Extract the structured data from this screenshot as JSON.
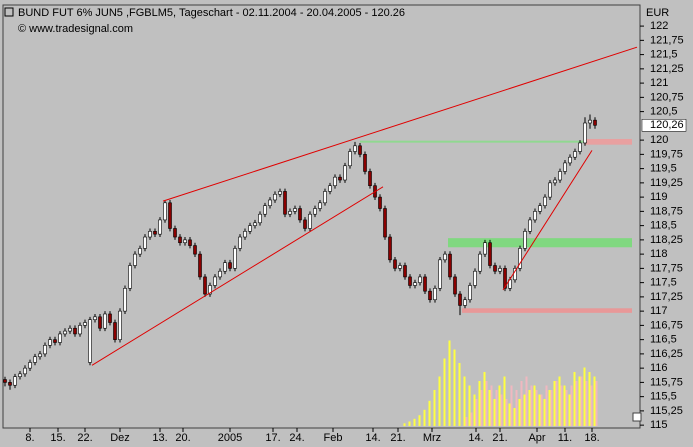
{
  "chart_data": {
    "type": "candlestick",
    "title": "BUND FUT 6% JUN5 ,FGBLM5, Tageschart - 02.11.2004 - 20.04.2005 - 120.26",
    "subtitle": "© www.tradesignal.com",
    "y_unit": "EUR",
    "xlim": [
      -0.4,
      127
    ],
    "ylim": [
      114.95,
      122.37
    ],
    "xticks": [
      {
        "value": 5,
        "label": "8."
      },
      {
        "value": 10.6,
        "label": "15."
      },
      {
        "value": 16,
        "label": "22."
      },
      {
        "value": 23,
        "label": "Dez"
      },
      {
        "value": 31,
        "label": "13."
      },
      {
        "value": 35.6,
        "label": "20."
      },
      {
        "value": 45,
        "label": "2005"
      },
      {
        "value": 53.6,
        "label": "17."
      },
      {
        "value": 58.4,
        "label": "24."
      },
      {
        "value": 65.6,
        "label": "Feb"
      },
      {
        "value": 73.6,
        "label": "14."
      },
      {
        "value": 78.6,
        "label": "21."
      },
      {
        "value": 85.4,
        "label": "Mrz"
      },
      {
        "value": 94.2,
        "label": "14."
      },
      {
        "value": 99,
        "label": "21."
      },
      {
        "value": 106.4,
        "label": "Apr"
      },
      {
        "value": 112,
        "label": "11."
      },
      {
        "value": 117.4,
        "label": "18."
      }
    ],
    "yticks": [
      115,
      {
        "value": 115.25,
        "label": "115,25"
      },
      {
        "value": 115.5,
        "label": "115,5"
      },
      {
        "value": 115.75,
        "label": "115,75"
      },
      116,
      {
        "value": 116.25,
        "label": "116,25"
      },
      {
        "value": 116.5,
        "label": "116,5"
      },
      {
        "value": 116.75,
        "label": "116,75"
      },
      117,
      {
        "value": 117.25,
        "label": "117,25"
      },
      {
        "value": 117.5,
        "label": "117,5"
      },
      {
        "value": 117.75,
        "label": "117,75"
      },
      118,
      {
        "value": 118.25,
        "label": "118,25"
      },
      {
        "value": 118.5,
        "label": "118,5"
      },
      {
        "value": 118.75,
        "label": "118,75"
      },
      119,
      {
        "value": 119.25,
        "label": "119,25"
      },
      {
        "value": 119.5,
        "label": "119,5"
      },
      {
        "value": 119.75,
        "label": "119,75"
      },
      120,
      {
        "value": 120.5,
        "label": "120,5"
      },
      {
        "value": 120.75,
        "label": "120,75"
      },
      121,
      {
        "value": 121.25,
        "label": "121,25"
      },
      {
        "value": 121.5,
        "label": "121,5"
      },
      {
        "value": 121.75,
        "label": "121,75"
      },
      122
    ],
    "last_price": {
      "value": 120.26,
      "label": "120,26"
    },
    "up_color": "#ffffff",
    "down_color": "#8b0000",
    "candles": [
      [
        115.8,
        115.85,
        115.68,
        115.75
      ],
      [
        115.75,
        115.8,
        115.62,
        115.7
      ],
      [
        115.7,
        115.9,
        115.65,
        115.85
      ],
      [
        115.85,
        115.95,
        115.8,
        115.9
      ],
      [
        115.9,
        116.05,
        115.85,
        116.0
      ],
      [
        116.0,
        116.15,
        115.95,
        116.1
      ],
      [
        116.1,
        116.25,
        116.05,
        116.2
      ],
      [
        116.2,
        116.3,
        116.15,
        116.25
      ],
      [
        116.25,
        116.45,
        116.2,
        116.4
      ],
      [
        116.4,
        116.55,
        116.35,
        116.5
      ],
      [
        116.5,
        116.55,
        116.4,
        116.45
      ],
      [
        116.45,
        116.65,
        116.4,
        116.6
      ],
      [
        116.6,
        116.7,
        116.55,
        116.65
      ],
      [
        116.65,
        116.75,
        116.6,
        116.7
      ],
      [
        116.7,
        116.75,
        116.55,
        116.6
      ],
      [
        116.6,
        116.8,
        116.55,
        116.75
      ],
      [
        116.75,
        116.85,
        116.7,
        116.8
      ],
      [
        116.1,
        116.9,
        116.05,
        116.85
      ],
      [
        116.85,
        116.95,
        116.8,
        116.9
      ],
      [
        116.9,
        116.95,
        116.65,
        116.7
      ],
      [
        116.7,
        117.0,
        116.65,
        116.95
      ],
      [
        116.95,
        117.0,
        116.75,
        116.8
      ],
      [
        116.8,
        116.85,
        116.45,
        116.5
      ],
      [
        116.5,
        117.05,
        116.45,
        117.0
      ],
      [
        117.0,
        117.45,
        116.95,
        117.4
      ],
      [
        117.4,
        117.85,
        117.35,
        117.8
      ],
      [
        117.8,
        118.05,
        117.75,
        118.0
      ],
      [
        118.0,
        118.15,
        117.95,
        118.1
      ],
      [
        118.1,
        118.35,
        118.05,
        118.3
      ],
      [
        118.3,
        118.45,
        118.25,
        118.4
      ],
      [
        118.4,
        118.45,
        118.3,
        118.35
      ],
      [
        118.35,
        118.65,
        118.3,
        118.6
      ],
      [
        118.6,
        118.95,
        118.55,
        118.9
      ],
      [
        118.9,
        118.95,
        118.4,
        118.45
      ],
      [
        118.45,
        118.5,
        118.25,
        118.3
      ],
      [
        118.3,
        118.35,
        118.15,
        118.2
      ],
      [
        118.2,
        118.3,
        118.15,
        118.25
      ],
      [
        118.25,
        118.3,
        118.1,
        118.15
      ],
      [
        118.15,
        118.2,
        117.95,
        118.0
      ],
      [
        118.0,
        118.05,
        117.55,
        117.6
      ],
      [
        117.6,
        117.65,
        117.25,
        117.3
      ],
      [
        117.3,
        117.5,
        117.25,
        117.45
      ],
      [
        117.45,
        117.65,
        117.4,
        117.6
      ],
      [
        117.6,
        117.75,
        117.55,
        117.7
      ],
      [
        117.7,
        117.9,
        117.65,
        117.85
      ],
      [
        117.85,
        117.9,
        117.7,
        117.75
      ],
      [
        117.75,
        118.15,
        117.7,
        118.1
      ],
      [
        118.1,
        118.35,
        118.05,
        118.3
      ],
      [
        118.3,
        118.45,
        118.25,
        118.4
      ],
      [
        118.4,
        118.55,
        118.35,
        118.5
      ],
      [
        118.5,
        118.6,
        118.45,
        118.55
      ],
      [
        118.55,
        118.75,
        118.5,
        118.7
      ],
      [
        118.7,
        118.9,
        118.65,
        118.85
      ],
      [
        118.85,
        119.0,
        118.8,
        118.95
      ],
      [
        118.95,
        119.1,
        118.9,
        119.05
      ],
      [
        119.05,
        119.15,
        119.0,
        119.1
      ],
      [
        119.1,
        119.15,
        118.65,
        118.7
      ],
      [
        118.7,
        118.8,
        118.65,
        118.75
      ],
      [
        118.75,
        118.85,
        118.7,
        118.8
      ],
      [
        118.8,
        118.85,
        118.55,
        118.6
      ],
      [
        118.6,
        118.65,
        118.4,
        118.45
      ],
      [
        118.45,
        118.75,
        118.4,
        118.7
      ],
      [
        118.7,
        118.85,
        118.65,
        118.8
      ],
      [
        118.8,
        118.95,
        118.75,
        118.9
      ],
      [
        118.9,
        119.15,
        118.85,
        119.1
      ],
      [
        119.1,
        119.25,
        119.05,
        119.2
      ],
      [
        119.2,
        119.4,
        119.15,
        119.35
      ],
      [
        119.35,
        119.4,
        119.25,
        119.3
      ],
      [
        119.3,
        119.6,
        119.25,
        119.55
      ],
      [
        119.55,
        119.85,
        119.5,
        119.8
      ],
      [
        119.8,
        119.97,
        119.75,
        119.9
      ],
      [
        119.9,
        119.95,
        119.7,
        119.75
      ],
      [
        119.75,
        119.8,
        119.4,
        119.45
      ],
      [
        119.45,
        119.5,
        119.15,
        119.2
      ],
      [
        119.2,
        119.25,
        118.95,
        119.0
      ],
      [
        119.0,
        119.05,
        118.75,
        118.8
      ],
      [
        118.8,
        118.85,
        118.25,
        118.3
      ],
      [
        118.3,
        118.35,
        117.85,
        117.9
      ],
      [
        117.9,
        117.95,
        117.7,
        117.75
      ],
      [
        117.75,
        117.85,
        117.7,
        117.8
      ],
      [
        117.8,
        117.85,
        117.55,
        117.6
      ],
      [
        117.6,
        117.65,
        117.4,
        117.45
      ],
      [
        117.45,
        117.55,
        117.4,
        117.5
      ],
      [
        117.5,
        117.65,
        117.45,
        117.6
      ],
      [
        117.6,
        117.65,
        117.3,
        117.35
      ],
      [
        117.35,
        117.4,
        117.15,
        117.2
      ],
      [
        117.2,
        117.45,
        117.15,
        117.4
      ],
      [
        117.4,
        117.95,
        117.35,
        117.9
      ],
      [
        117.9,
        118.05,
        117.85,
        118.0
      ],
      [
        118.0,
        118.05,
        117.55,
        117.6
      ],
      [
        117.6,
        117.65,
        117.25,
        117.3
      ],
      [
        117.3,
        117.35,
        116.93,
        117.1
      ],
      [
        117.1,
        117.25,
        117.05,
        117.2
      ],
      [
        117.2,
        117.5,
        117.15,
        117.45
      ],
      [
        117.45,
        117.75,
        117.4,
        117.7
      ],
      [
        117.7,
        118.05,
        117.65,
        118.0
      ],
      [
        118.0,
        118.25,
        117.95,
        118.2
      ],
      [
        118.2,
        118.25,
        117.75,
        117.8
      ],
      [
        117.8,
        117.85,
        117.65,
        117.7
      ],
      [
        117.7,
        117.8,
        117.65,
        117.75
      ],
      [
        117.75,
        117.8,
        117.35,
        117.4
      ],
      [
        117.4,
        117.6,
        117.35,
        117.55
      ],
      [
        117.55,
        117.8,
        117.5,
        117.75
      ],
      [
        117.75,
        118.15,
        117.7,
        118.1
      ],
      [
        118.1,
        118.45,
        118.05,
        118.4
      ],
      [
        118.4,
        118.65,
        118.35,
        118.6
      ],
      [
        118.6,
        118.8,
        118.55,
        118.75
      ],
      [
        118.75,
        118.9,
        118.7,
        118.85
      ],
      [
        118.85,
        119.05,
        118.8,
        119.0
      ],
      [
        119.0,
        119.3,
        118.95,
        119.25
      ],
      [
        119.25,
        119.35,
        119.2,
        119.3
      ],
      [
        119.3,
        119.5,
        119.25,
        119.45
      ],
      [
        119.45,
        119.65,
        119.4,
        119.6
      ],
      [
        119.6,
        119.75,
        119.55,
        119.7
      ],
      [
        119.7,
        119.85,
        119.65,
        119.8
      ],
      [
        119.8,
        120.0,
        119.75,
        119.95
      ],
      [
        119.95,
        120.4,
        119.9,
        120.3
      ],
      [
        120.3,
        120.45,
        120.2,
        120.35
      ],
      [
        120.35,
        120.4,
        120.2,
        120.26
      ]
    ],
    "volume_series": [
      {
        "color": "#ffff40",
        "values": [
          null,
          null,
          null,
          null,
          null,
          null,
          null,
          null,
          null,
          null,
          null,
          null,
          null,
          null,
          null,
          null,
          null,
          null,
          null,
          null,
          null,
          null,
          null,
          null,
          null,
          null,
          null,
          null,
          null,
          null,
          null,
          null,
          null,
          null,
          null,
          null,
          null,
          null,
          null,
          null,
          null,
          null,
          null,
          null,
          null,
          null,
          null,
          null,
          null,
          null,
          null,
          null,
          null,
          null,
          null,
          null,
          null,
          null,
          null,
          null,
          null,
          null,
          null,
          null,
          null,
          null,
          null,
          null,
          null,
          null,
          null,
          null,
          null,
          null,
          null,
          null,
          null,
          null,
          null,
          null,
          3,
          5,
          8,
          12,
          18,
          28,
          40,
          55,
          75,
          95,
          85,
          70,
          55,
          45,
          35,
          50,
          60,
          40,
          30,
          45,
          55,
          25,
          20,
          30,
          35,
          40,
          45,
          35,
          30,
          40,
          50,
          55,
          45,
          35,
          60,
          55,
          65,
          60,
          55
        ]
      },
      {
        "color": "#f0b8c0",
        "values": [
          null,
          null,
          null,
          null,
          null,
          null,
          null,
          null,
          null,
          null,
          null,
          null,
          null,
          null,
          null,
          null,
          null,
          null,
          null,
          null,
          null,
          null,
          null,
          null,
          null,
          null,
          null,
          null,
          null,
          null,
          null,
          null,
          null,
          null,
          null,
          null,
          null,
          null,
          null,
          null,
          null,
          null,
          null,
          null,
          null,
          null,
          null,
          null,
          null,
          null,
          null,
          null,
          null,
          null,
          null,
          null,
          null,
          null,
          null,
          null,
          null,
          null,
          null,
          null,
          null,
          null,
          null,
          null,
          null,
          null,
          null,
          null,
          null,
          null,
          null,
          null,
          null,
          null,
          null,
          null,
          null,
          null,
          null,
          null,
          null,
          null,
          null,
          null,
          null,
          null,
          null,
          null,
          10,
          15,
          30,
          40,
          50,
          45,
          40,
          35,
          30,
          45,
          40,
          50,
          55,
          45,
          40,
          35,
          45,
          40,
          50,
          45,
          40,
          45,
          50,
          55,
          50,
          45,
          50
        ]
      }
    ],
    "trendlines": [
      {
        "color": "#e00000",
        "from": [
          17.4,
          116.05
        ],
        "to": [
          75.6,
          119.18
        ]
      },
      {
        "color": "#e00000",
        "from": [
          31.6,
          118.93
        ],
        "to": [
          126.4,
          121.63
        ]
      },
      {
        "color": "#e00000",
        "from": [
          99.6,
          117.37
        ],
        "to": [
          117.4,
          119.82
        ]
      }
    ],
    "bands": [
      {
        "color": "#90d890",
        "from": 71,
        "range": [
          119.96,
          119.99
        ]
      },
      {
        "color": "#80d880",
        "from": 88.6,
        "range": [
          118.12,
          118.28
        ]
      },
      {
        "color": "#e89898",
        "from": 91.4,
        "range": [
          116.97,
          117.05
        ]
      },
      {
        "color": "#e8a0a0",
        "from": 116,
        "range": [
          119.92,
          120.02
        ]
      }
    ]
  }
}
